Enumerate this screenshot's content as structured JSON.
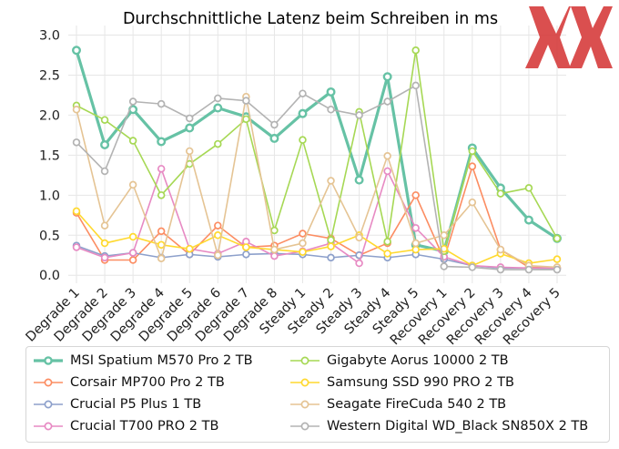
{
  "chart_data": {
    "type": "line",
    "title": "Durchschnittliche Latenz beim Schreiben in ms",
    "xlabel": "",
    "ylabel": "",
    "ylim": [
      0,
      3.0
    ],
    "yticks": [
      "0.0",
      "0.5",
      "1.0",
      "1.5",
      "2.0",
      "2.5",
      "3.0"
    ],
    "grid": true,
    "legend_position": "bottom",
    "categories": [
      "Degrade 1",
      "Degrade 2",
      "Degrade 3",
      "Degrade 4",
      "Degrade 5",
      "Degrade 6",
      "Degrade 7",
      "Degrade 8",
      "Steady 1",
      "Steady 2",
      "Steady 3",
      "Steady 4",
      "Steady 5",
      "Recovery 1",
      "Recovery 2",
      "Recovery 3",
      "Recovery 4",
      "Recovery 5"
    ],
    "series": [
      {
        "name": "MSI Spatium M570 Pro 2 TB",
        "color": "#66c2a5",
        "bold": true,
        "values": [
          2.81,
          1.63,
          2.07,
          1.67,
          1.84,
          2.09,
          1.98,
          1.71,
          2.02,
          2.29,
          1.19,
          2.48,
          0.38,
          0.3,
          1.59,
          1.09,
          0.69,
          0.46
        ]
      },
      {
        "name": "Corsair MP700 Pro 2 TB",
        "color": "#fc8d62",
        "values": [
          0.78,
          0.19,
          0.19,
          0.55,
          0.26,
          0.62,
          0.35,
          0.37,
          0.52,
          0.46,
          0.25,
          0.4,
          1.0,
          0.2,
          1.36,
          0.32,
          0.1,
          0.09
        ]
      },
      {
        "name": "Crucial P5 Plus 1 TB",
        "color": "#8da0cb",
        "values": [
          0.37,
          0.24,
          0.28,
          0.22,
          0.26,
          0.23,
          0.26,
          0.27,
          0.26,
          0.22,
          0.25,
          0.22,
          0.26,
          0.2,
          0.12,
          0.09,
          0.09,
          0.08
        ]
      },
      {
        "name": "Crucial T700 PRO 2 TB",
        "color": "#e78ac3",
        "values": [
          0.35,
          0.22,
          0.28,
          1.33,
          0.33,
          0.27,
          0.42,
          0.24,
          0.3,
          0.4,
          0.15,
          1.3,
          0.59,
          0.23,
          0.12,
          0.1,
          0.09,
          0.09
        ]
      },
      {
        "name": "Gigabyte Aorus 10000 2 TB",
        "color": "#a6d854",
        "values": [
          2.12,
          1.94,
          1.68,
          1.0,
          1.39,
          1.64,
          1.95,
          0.56,
          1.69,
          0.44,
          2.04,
          0.42,
          2.81,
          0.3,
          1.55,
          1.02,
          1.09,
          0.46
        ]
      },
      {
        "name": "Samsung SSD 990 PRO 2 TB",
        "color": "#ffd92f",
        "values": [
          0.8,
          0.4,
          0.48,
          0.38,
          0.33,
          0.5,
          0.35,
          0.32,
          0.29,
          0.36,
          0.5,
          0.27,
          0.32,
          0.33,
          0.12,
          0.27,
          0.15,
          0.2
        ]
      },
      {
        "name": "Seagate FireCuda 540 2 TB",
        "color": "#e5c494",
        "values": [
          2.07,
          0.62,
          1.13,
          0.21,
          1.55,
          0.25,
          2.23,
          0.32,
          0.4,
          1.18,
          0.47,
          1.49,
          0.4,
          0.5,
          0.91,
          0.32,
          0.12,
          0.1
        ]
      },
      {
        "name": "Western Digital WD_Black SN850X 2 TB",
        "color": "#b3b3b3",
        "values": [
          1.66,
          1.3,
          2.17,
          2.14,
          1.96,
          2.21,
          2.18,
          1.88,
          2.27,
          2.07,
          2.0,
          2.17,
          2.37,
          0.11,
          0.1,
          0.07,
          0.07,
          0.07
        ]
      }
    ]
  },
  "watermark": "XX"
}
